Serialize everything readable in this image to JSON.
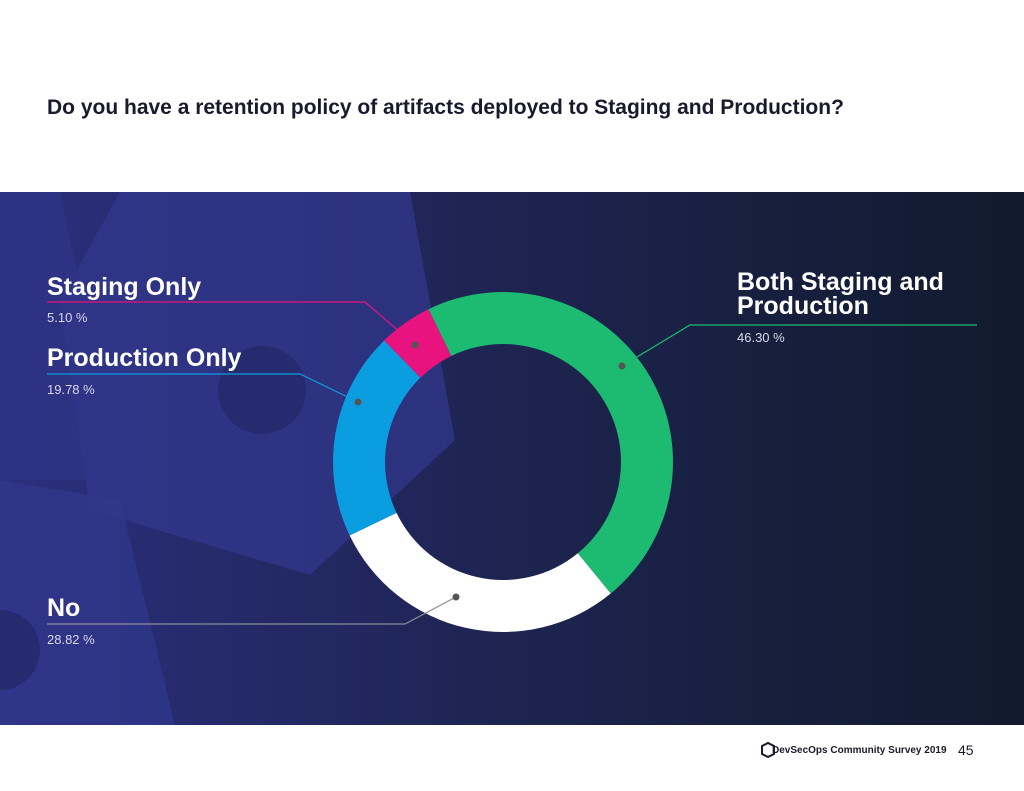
{
  "title": "Do you have a retention policy of artifacts deployed to Staging and Production?",
  "chart_data": {
    "type": "donut",
    "categories": [
      "Both Staging and Production",
      "No",
      "Production Only",
      "Staging Only"
    ],
    "values": [
      46.3,
      28.82,
      19.78,
      5.1
    ],
    "value_labels": [
      "46.30 %",
      "28.82 %",
      "19.78 %",
      "5.10 %"
    ],
    "colors": [
      "#1dbb72",
      "#ffffff",
      "#0a9de0",
      "#e8137f"
    ]
  },
  "footer": {
    "source": "DevSecOps Community Survey 2019",
    "page": "45"
  }
}
